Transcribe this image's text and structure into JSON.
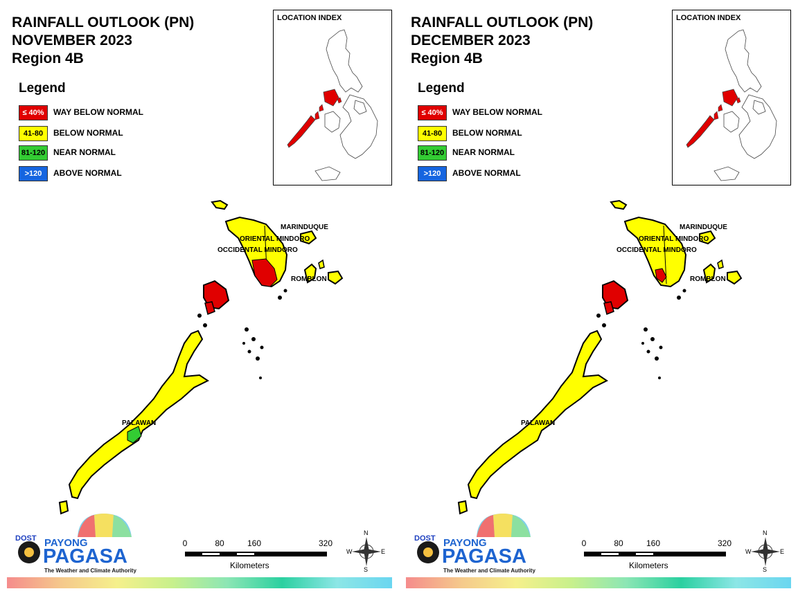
{
  "panels": [
    {
      "title_line1": "RAINFALL OUTLOOK (PN)",
      "title_line2": "NOVEMBER 2023",
      "title_line3": "Region 4B",
      "palawan_color": "#ffff00",
      "mindoro_red_extent": "large"
    },
    {
      "title_line1": "RAINFALL OUTLOOK (PN)",
      "title_line2": "DECEMBER 2023",
      "title_line3": "Region 4B",
      "palawan_color": "#ffff00",
      "mindoro_red_extent": "small"
    }
  ],
  "legend": {
    "title": "Legend",
    "items": [
      {
        "swatch": "≤ 40%",
        "label": "WAY BELOW NORMAL",
        "color": "#e00000",
        "text_color": "#ffffff"
      },
      {
        "swatch": "41-80",
        "label": "BELOW NORMAL",
        "color": "#ffff00",
        "text_color": "#000000"
      },
      {
        "swatch": "81-120",
        "label": "NEAR NORMAL",
        "color": "#33cc33",
        "text_color": "#000000"
      },
      {
        "swatch": ">120",
        "label": "ABOVE NORMAL",
        "color": "#1565e0",
        "text_color": "#ffffff"
      }
    ]
  },
  "location_index": {
    "title": "LOCATION INDEX"
  },
  "provinces": {
    "marinduque": "MARINDUQUE",
    "oriental_mindoro": "ORIENTAL MINDORO",
    "occidental_mindoro": "OCCIDENTAL MINDORO",
    "romblon": "ROMBLON",
    "palawan": "PALAWAN"
  },
  "scale_bar": {
    "ticks": [
      "0",
      "80",
      "160",
      "320"
    ],
    "unit": "Kilometers"
  },
  "compass": {
    "n": "N",
    "s": "S",
    "e": "E",
    "w": "W"
  },
  "logo": {
    "dost": "DOST",
    "payong": "PAYONG",
    "pagasa": "PAGASA",
    "tagline": "The Weather and Climate Authority"
  }
}
